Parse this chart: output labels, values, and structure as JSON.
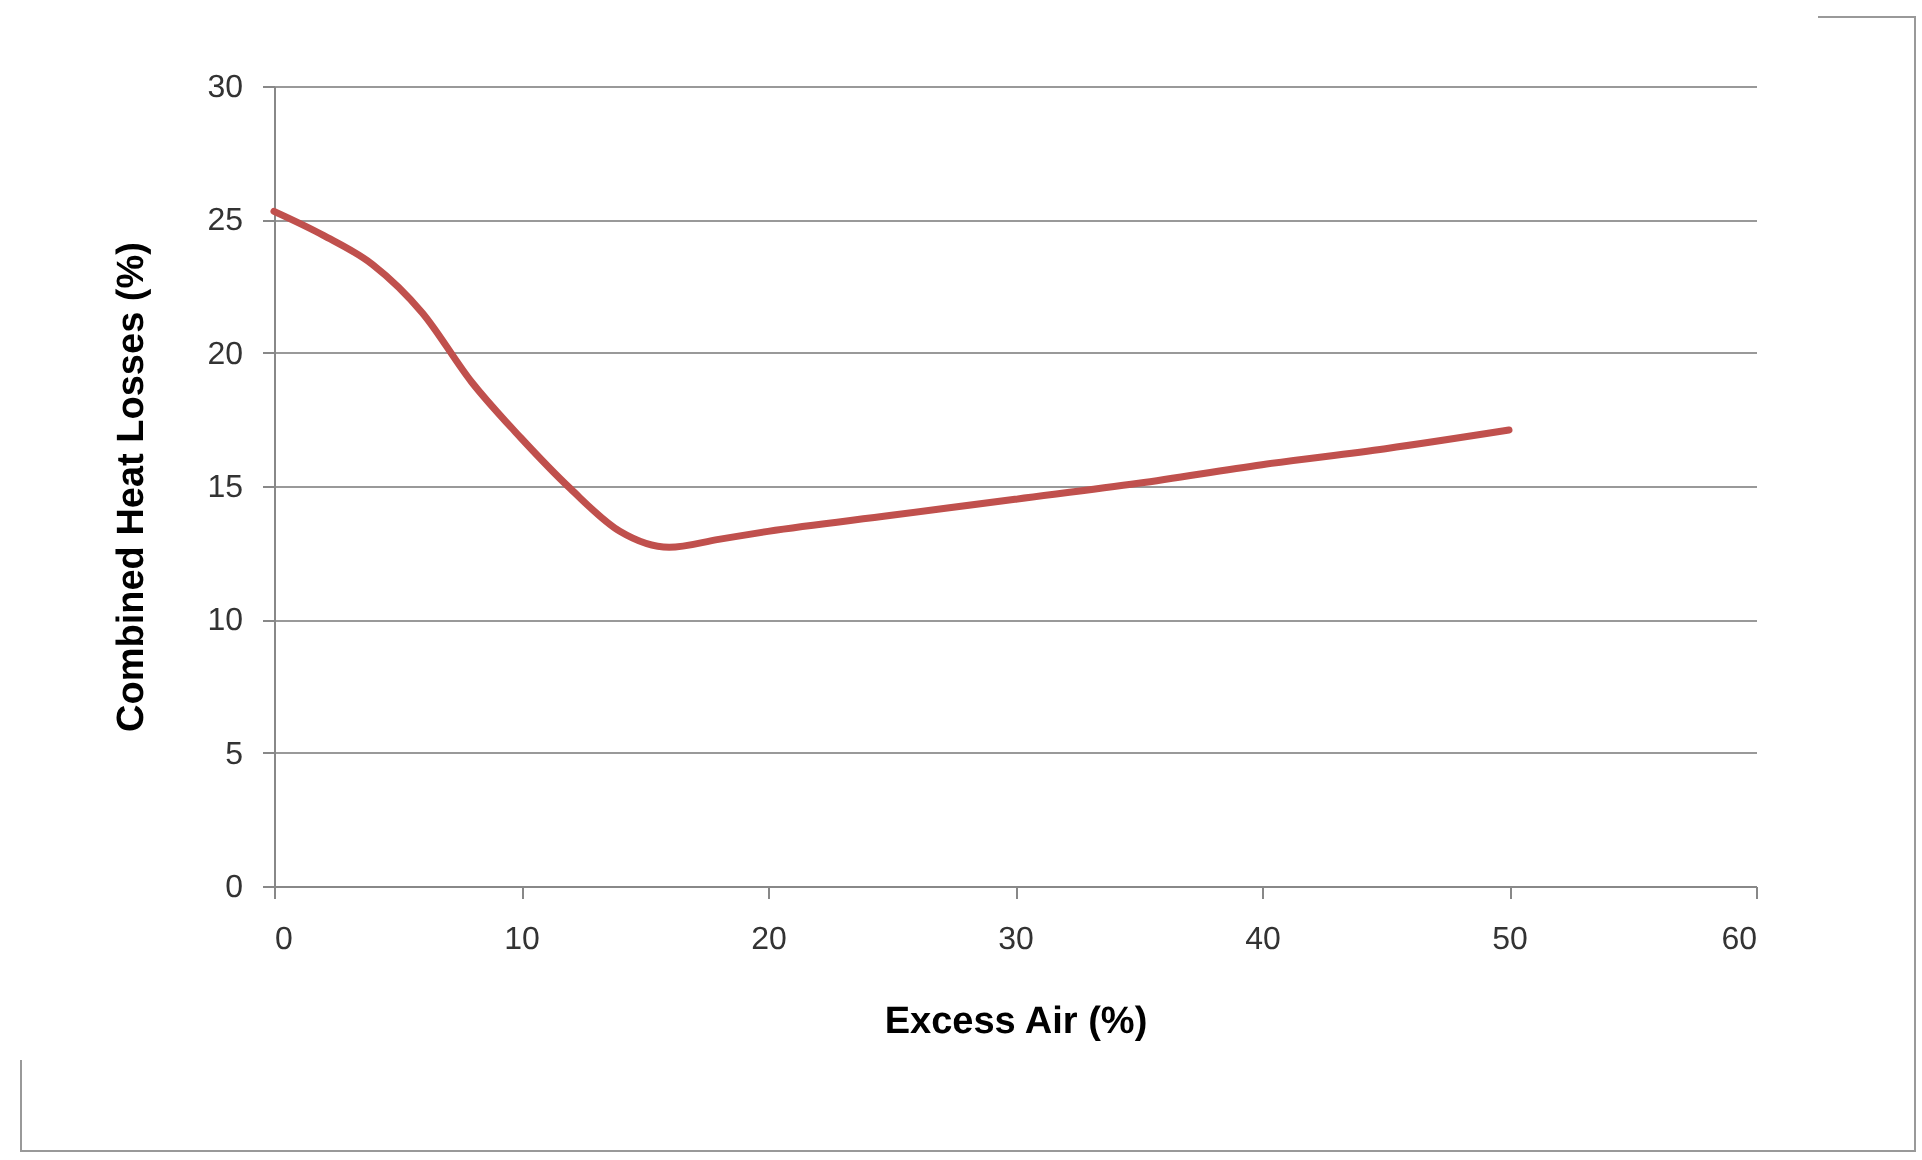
{
  "chart_data": {
    "type": "line",
    "xlabel": "Excess Air (%)",
    "ylabel": "Combined Heat Losses (%)",
    "x": [
      0,
      2,
      4,
      6,
      8,
      10,
      12,
      14,
      16,
      18,
      20,
      25,
      30,
      35,
      40,
      45,
      50
    ],
    "series": [
      {
        "color": "#c0504d",
        "values": [
          25.3,
          24.4,
          23.3,
          21.5,
          18.9,
          16.8,
          14.9,
          13.3,
          12.7,
          13,
          13.3,
          13.9,
          14.5,
          15.1,
          15.8,
          16.4,
          17.1
        ]
      }
    ],
    "xlim": [
      0,
      60
    ],
    "xticks": [
      0,
      10,
      20,
      30,
      40,
      50,
      60
    ],
    "ylim": [
      0,
      30
    ],
    "yticks": [
      0,
      5,
      10,
      15,
      20,
      25,
      30
    ],
    "grid": "y",
    "legend": false,
    "marker": "none",
    "line_style": "solid"
  }
}
